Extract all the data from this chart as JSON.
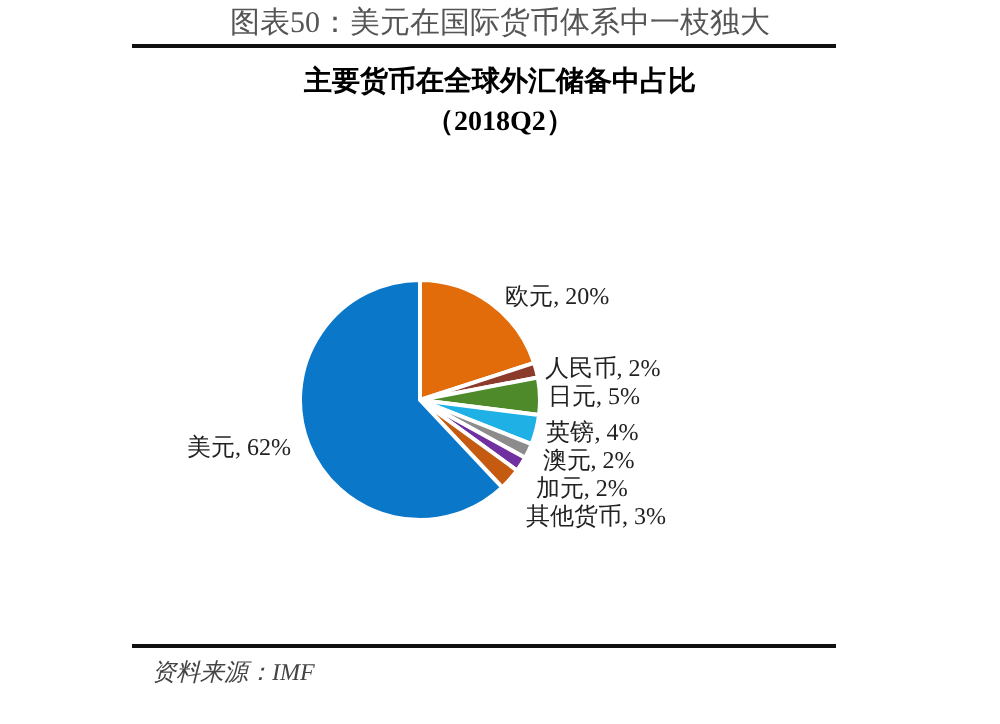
{
  "chart_data": {
    "type": "pie",
    "title": "图表50：美元在国际货币体系中一枝独大",
    "subtitle": "主要货币在全球外汇储备中占比",
    "annotations": [
      "（2018Q2）",
      "资料来源：IMF"
    ],
    "categories": [
      "欧元",
      "人民币",
      "日元",
      "英镑",
      "澳元",
      "加元",
      "其他货币",
      "美元"
    ],
    "values": [
      20,
      2,
      5,
      4,
      2,
      2,
      3,
      62
    ],
    "value_labels": [
      "20%",
      "2%",
      "5%",
      "4%",
      "2%",
      "2%",
      "3%",
      "62%"
    ],
    "colors": [
      "#e36c0a",
      "#8c3a2a",
      "#4e8a2a",
      "#1fb0e6",
      "#8c8c8c",
      "#7030a0",
      "#c55a11",
      "#0a77c9"
    ],
    "legend": false
  }
}
